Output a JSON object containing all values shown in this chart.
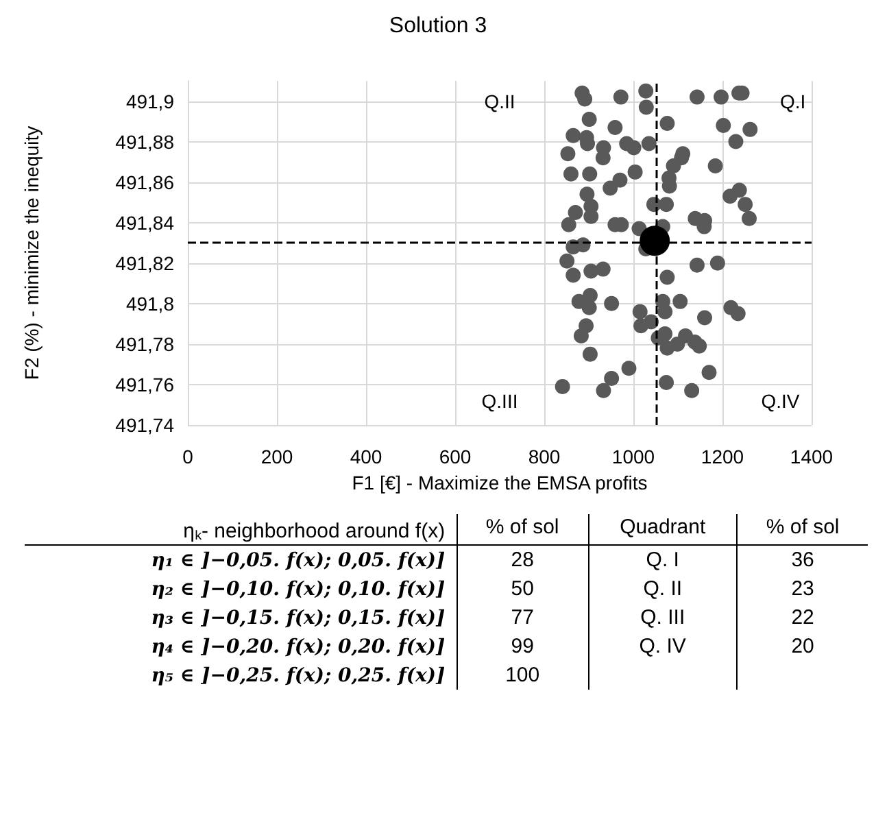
{
  "chart_data": [
    {
      "type": "scatter",
      "title": "Solution 3",
      "xlabel": "F1 [€] - Maximize the EMSA profits",
      "ylabel": "F2 (%) - minimize the inequity",
      "xlim": [
        0,
        1400
      ],
      "xticks": [
        0,
        200,
        400,
        600,
        800,
        1000,
        1200,
        1400
      ],
      "ylim": [
        491.74,
        491.91
      ],
      "yticks": [
        {
          "value": 491.74,
          "label": "491,74"
        },
        {
          "value": 491.76,
          "label": "491,76"
        },
        {
          "value": 491.78,
          "label": "491,78"
        },
        {
          "value": 491.8,
          "label": "491,8"
        },
        {
          "value": 491.82,
          "label": "491,82"
        },
        {
          "value": 491.84,
          "label": "491,84"
        },
        {
          "value": 491.86,
          "label": "491,86"
        },
        {
          "value": 491.88,
          "label": "491,88"
        },
        {
          "value": 491.9,
          "label": "491,9"
        }
      ],
      "grid": true,
      "marker": "circle",
      "series": [
        {
          "color": "#595959",
          "x": [
            885,
            891,
            972,
            1028,
            1029,
            1143,
            1197,
            1237,
            1244,
            901,
            1076,
            1202,
            1262,
            959,
            865,
            895,
            897,
            933,
            932,
            985,
            1001,
            1035,
            1230,
            853,
            1111,
            1108,
            1090,
            1184,
            860,
            902,
            1004,
            1080,
            1081,
            970,
            948,
            896,
            1238,
            1217,
            1251,
            1260,
            1046,
            1074,
            905,
            905,
            870,
            855,
            959,
            973,
            1013,
            1066,
            1139,
            1160,
            1159,
            1028,
            865,
            887,
            851,
            865,
            905,
            932,
            1076,
            1143,
            1189,
            903,
            878,
            901,
            951,
            1066,
            1105,
            1071,
            1015,
            1160,
            1219,
            1235,
            894,
            883,
            1017,
            1040,
            1056,
            1071,
            1117,
            1099,
            1138,
            1148,
            1076,
            903,
            990,
            1170,
            951,
            841,
            933,
            1074,
            1131
          ],
          "values": [
            491.904,
            491.901,
            491.902,
            491.905,
            491.897,
            491.902,
            491.902,
            491.904,
            491.904,
            491.891,
            491.889,
            491.888,
            491.886,
            491.887,
            491.883,
            491.882,
            491.879,
            491.877,
            491.872,
            491.879,
            491.877,
            491.879,
            491.88,
            491.874,
            491.874,
            491.872,
            491.868,
            491.868,
            491.864,
            491.864,
            491.865,
            491.862,
            491.858,
            491.861,
            491.857,
            491.854,
            491.856,
            491.853,
            491.849,
            491.842,
            491.849,
            491.849,
            491.848,
            491.843,
            491.845,
            491.839,
            491.839,
            491.839,
            491.837,
            491.838,
            491.842,
            491.841,
            491.838,
            491.827,
            491.828,
            491.829,
            491.821,
            491.814,
            491.816,
            491.817,
            491.813,
            491.819,
            491.82,
            491.804,
            491.801,
            491.798,
            491.8,
            491.801,
            491.801,
            491.796,
            491.796,
            491.793,
            491.798,
            491.795,
            491.789,
            491.784,
            491.789,
            491.791,
            491.783,
            491.785,
            491.784,
            491.78,
            491.781,
            491.779,
            491.778,
            491.775,
            491.768,
            491.766,
            491.763,
            491.759,
            491.757,
            491.761,
            491.757
          ]
        },
        {
          "color": "#000000",
          "x": [
            1048
          ],
          "values": [
            491.831
          ]
        }
      ],
      "ref_lines": [
        {
          "axis": "x",
          "value": 1050,
          "color": "#000000",
          "line_style": "dashed"
        },
        {
          "axis": "y",
          "value": 491.831,
          "color": "#000000",
          "line_style": "dashed"
        }
      ],
      "annotations": [
        "Q.II",
        "Q.I",
        "Q.III",
        "Q.IV"
      ]
    },
    {
      "type": "other",
      "categories": [
        "ηₖ- neighborhood around f(x)",
        "% of sol",
        "Quadrant",
        "% of sol"
      ],
      "annotations": [
        "η₁ ∈ ]−0,05. f(x); 0,05. f(x)]",
        "28",
        "Q. I",
        "36",
        "η₂ ∈ ]−0,10. f(x); 0,10. f(x)]",
        "50",
        "Q. II",
        "23",
        "η₃ ∈ ]−0,15. f(x); 0,15. f(x)]",
        "77",
        "Q. III",
        "22",
        "η₄ ∈ ]−0,20. f(x); 0,20. f(x)]",
        "99",
        "Q. IV",
        "20",
        "η₅ ∈ ]−0,25. f(x); 0,25. f(x)]",
        "100"
      ]
    }
  ]
}
